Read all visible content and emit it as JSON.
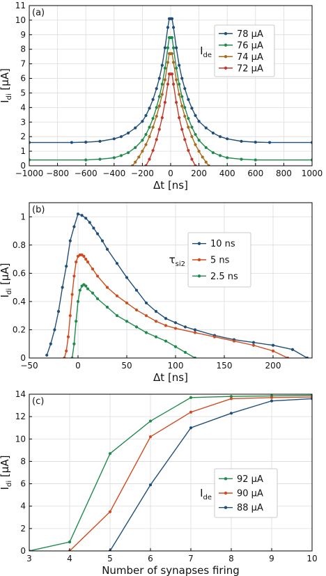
{
  "chart_data": [
    {
      "type": "line",
      "panel_label": "(a)",
      "xlabel": "Δt [ns]",
      "ylabel": "I",
      "ylabel_sub": "di",
      "ylabel_unit": " [μA]",
      "xlim": [
        -1000,
        1000
      ],
      "ylim": [
        0,
        11
      ],
      "xticks": [
        -1000,
        -800,
        -600,
        -400,
        -200,
        0,
        200,
        400,
        600,
        800,
        1000
      ],
      "yticks": [
        0,
        1,
        2,
        3,
        4,
        5,
        6,
        7,
        8,
        9,
        10,
        11
      ],
      "grid": true,
      "legend": {
        "title": "I",
        "title_sub": "de",
        "placement": "top-right",
        "entries": [
          "78 μA",
          "76 μA",
          "74 μA",
          "72 μA"
        ]
      },
      "series": [
        {
          "name": "78 μA",
          "color": "#1f4e7a",
          "x": [
            -1000,
            -700,
            -600,
            -500,
            -400,
            -350,
            -300,
            -250,
            -200,
            -175,
            -150,
            -125,
            -100,
            -80,
            -60,
            -40,
            -20,
            -10,
            0,
            10,
            20,
            40,
            60,
            80,
            100,
            125,
            150,
            175,
            200,
            250,
            300,
            350,
            400,
            500,
            600,
            700,
            1000
          ],
          "y": [
            1.6,
            1.6,
            1.62,
            1.68,
            1.85,
            2.0,
            2.25,
            2.6,
            3.05,
            3.45,
            3.95,
            4.55,
            5.3,
            6.0,
            6.9,
            8.1,
            9.5,
            10.1,
            10.1,
            10.1,
            9.5,
            8.1,
            6.9,
            6.0,
            5.3,
            4.55,
            3.95,
            3.45,
            3.05,
            2.6,
            2.25,
            2.0,
            1.85,
            1.68,
            1.62,
            1.6,
            1.6
          ]
        },
        {
          "name": "76 μA",
          "color": "#1f8a4c",
          "x": [
            -1000,
            -600,
            -500,
            -400,
            -350,
            -300,
            -250,
            -200,
            -175,
            -150,
            -125,
            -100,
            -80,
            -60,
            -40,
            -20,
            -10,
            0,
            10,
            20,
            40,
            60,
            80,
            100,
            125,
            150,
            175,
            200,
            250,
            300,
            350,
            400,
            500,
            600,
            1000
          ],
          "y": [
            0.4,
            0.4,
            0.45,
            0.55,
            0.7,
            0.9,
            1.25,
            1.75,
            2.15,
            2.65,
            3.25,
            4.0,
            4.75,
            5.6,
            6.7,
            8.1,
            8.8,
            8.8,
            8.8,
            8.1,
            6.7,
            5.6,
            4.75,
            4.0,
            3.25,
            2.65,
            2.15,
            1.75,
            1.25,
            0.9,
            0.7,
            0.55,
            0.45,
            0.4,
            0.4
          ]
        },
        {
          "name": "74 μA",
          "color": "#a86a1c",
          "x": [
            -270,
            -250,
            -225,
            -200,
            -175,
            -150,
            -125,
            -100,
            -80,
            -60,
            -40,
            -20,
            -10,
            0,
            10,
            20,
            40,
            60,
            80,
            100,
            125,
            150,
            175,
            200,
            225,
            250,
            270
          ],
          "y": [
            0.0,
            0.25,
            0.6,
            1.0,
            1.45,
            2.0,
            2.65,
            3.4,
            4.1,
            4.9,
            5.9,
            7.1,
            7.7,
            7.7,
            7.7,
            7.1,
            5.9,
            4.9,
            4.1,
            3.4,
            2.65,
            2.0,
            1.45,
            1.0,
            0.6,
            0.25,
            0.0
          ]
        },
        {
          "name": "72 μA",
          "color": "#c0392b",
          "x": [
            -175,
            -150,
            -125,
            -100,
            -80,
            -60,
            -40,
            -20,
            -10,
            0,
            10,
            20,
            40,
            60,
            80,
            100,
            125,
            150,
            175
          ],
          "y": [
            0.0,
            0.45,
            1.05,
            1.8,
            2.5,
            3.3,
            4.35,
            5.6,
            6.3,
            6.3,
            6.3,
            5.6,
            4.35,
            3.3,
            2.5,
            1.8,
            1.05,
            0.45,
            0.0
          ]
        }
      ]
    },
    {
      "type": "line",
      "panel_label": "(b)",
      "xlabel": "Δt [ns]",
      "ylabel": "I",
      "ylabel_sub": "di",
      "ylabel_unit": " [μA]",
      "xlim": [
        -50,
        240
      ],
      "ylim": [
        0,
        1.1
      ],
      "xticks": [
        -50,
        0,
        50,
        100,
        150,
        200
      ],
      "yticks": [
        0,
        0.2,
        0.4,
        0.6,
        0.8,
        1
      ],
      "grid": true,
      "legend": {
        "title": "τ",
        "title_sub": "si2",
        "placement": "top-right",
        "entries": [
          "10 ns",
          "5 ns",
          "2.5 ns"
        ]
      },
      "series": [
        {
          "name": "10 ns",
          "color": "#1f4e7a",
          "x": [
            -32,
            -28,
            -24,
            -20,
            -16,
            -12,
            -8,
            -4,
            0,
            4,
            8,
            12,
            16,
            20,
            25,
            30,
            40,
            50,
            60,
            70,
            80,
            90,
            100,
            110,
            120,
            140,
            160,
            180,
            200,
            220,
            235
          ],
          "y": [
            0.02,
            0.1,
            0.2,
            0.33,
            0.5,
            0.65,
            0.83,
            0.93,
            1.02,
            1.01,
            0.99,
            0.96,
            0.92,
            0.88,
            0.83,
            0.77,
            0.67,
            0.57,
            0.48,
            0.39,
            0.33,
            0.28,
            0.25,
            0.22,
            0.2,
            0.16,
            0.13,
            0.11,
            0.09,
            0.06,
            0.0
          ]
        },
        {
          "name": "5 ns",
          "color": "#d14a1e",
          "x": [
            -14,
            -12,
            -10,
            -8,
            -6,
            -4,
            -2,
            0,
            2,
            4,
            6,
            8,
            10,
            15,
            20,
            30,
            40,
            50,
            60,
            70,
            80,
            90,
            100,
            120,
            140,
            160,
            180,
            200,
            215
          ],
          "y": [
            0.0,
            0.05,
            0.15,
            0.3,
            0.45,
            0.58,
            0.68,
            0.72,
            0.73,
            0.73,
            0.72,
            0.7,
            0.68,
            0.63,
            0.58,
            0.5,
            0.44,
            0.39,
            0.34,
            0.3,
            0.26,
            0.23,
            0.21,
            0.18,
            0.15,
            0.12,
            0.09,
            0.05,
            0.0
          ]
        },
        {
          "name": "2.5 ns",
          "color": "#1f8a4c",
          "x": [
            -6,
            -4,
            -2,
            0,
            2,
            4,
            6,
            8,
            10,
            15,
            20,
            30,
            40,
            50,
            60,
            70,
            80,
            90,
            100,
            110,
            120
          ],
          "y": [
            0.0,
            0.1,
            0.26,
            0.4,
            0.48,
            0.51,
            0.52,
            0.51,
            0.49,
            0.46,
            0.42,
            0.36,
            0.3,
            0.26,
            0.22,
            0.18,
            0.15,
            0.12,
            0.08,
            0.04,
            0.0
          ]
        }
      ]
    },
    {
      "type": "line",
      "panel_label": "(c)",
      "xlabel": "Number of synapses firing",
      "ylabel": "I",
      "ylabel_sub": "di",
      "ylabel_unit": " [μA]",
      "xlim": [
        3,
        10
      ],
      "ylim": [
        0,
        14
      ],
      "xticks": [
        3,
        4,
        5,
        6,
        7,
        8,
        9,
        10
      ],
      "yticks": [
        0,
        2,
        4,
        6,
        8,
        10,
        12,
        14
      ],
      "grid": true,
      "legend": {
        "title": "I",
        "title_sub": "de",
        "placement": "lower-right",
        "entries": [
          "92 μA",
          "90 μA",
          "88 μA"
        ]
      },
      "series": [
        {
          "name": "92 μA",
          "color": "#1f8a4c",
          "x": [
            3,
            4,
            5,
            6,
            7,
            8,
            9,
            10
          ],
          "y": [
            0.0,
            0.8,
            8.7,
            11.6,
            13.7,
            13.8,
            13.85,
            13.9
          ]
        },
        {
          "name": "90 μA",
          "color": "#d14a1e",
          "x": [
            4,
            5,
            6,
            7,
            8,
            9,
            10
          ],
          "y": [
            0.0,
            3.5,
            10.2,
            12.4,
            13.6,
            13.7,
            13.75
          ]
        },
        {
          "name": "88 μA",
          "color": "#1f4e7a",
          "x": [
            5,
            6,
            7,
            8,
            9,
            10
          ],
          "y": [
            0.0,
            5.9,
            11.0,
            12.3,
            13.4,
            13.6
          ]
        }
      ]
    }
  ]
}
